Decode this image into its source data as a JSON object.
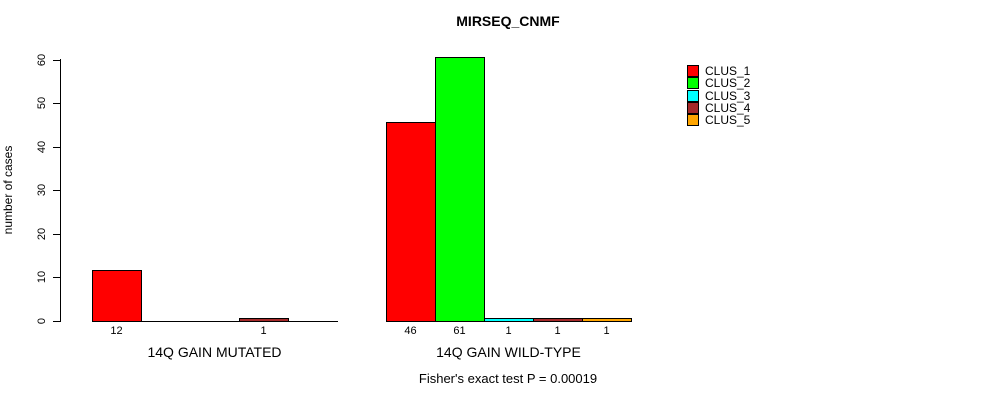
{
  "chart_data": {
    "type": "bar",
    "title": "MIRSEQ_CNMF",
    "subtitle": "Fisher's exact test P = 0.00019",
    "ylabel": "number of cases",
    "xlabel": "",
    "categories": [
      "14Q GAIN MUTATED",
      "14Q GAIN WILD-TYPE"
    ],
    "series": [
      {
        "name": "CLUS_1",
        "color": "#FF0000",
        "values": [
          12,
          46
        ]
      },
      {
        "name": "CLUS_2",
        "color": "#00FF00",
        "values": [
          0,
          61
        ]
      },
      {
        "name": "CLUS_3",
        "color": "#00FFFF",
        "values": [
          0,
          1
        ]
      },
      {
        "name": "CLUS_4",
        "color": "#A52A2A",
        "values": [
          1,
          1
        ]
      },
      {
        "name": "CLUS_5",
        "color": "#FFA500",
        "values": [
          0,
          1
        ]
      }
    ],
    "yticks": [
      0,
      10,
      20,
      30,
      40,
      50,
      60
    ],
    "ylim": [
      0,
      60
    ],
    "grid": false,
    "bar_value_labels": "shown under each nonzero bar",
    "legend_position": "right",
    "background_color": "#FFFFFF",
    "axis_color": "#000000"
  }
}
